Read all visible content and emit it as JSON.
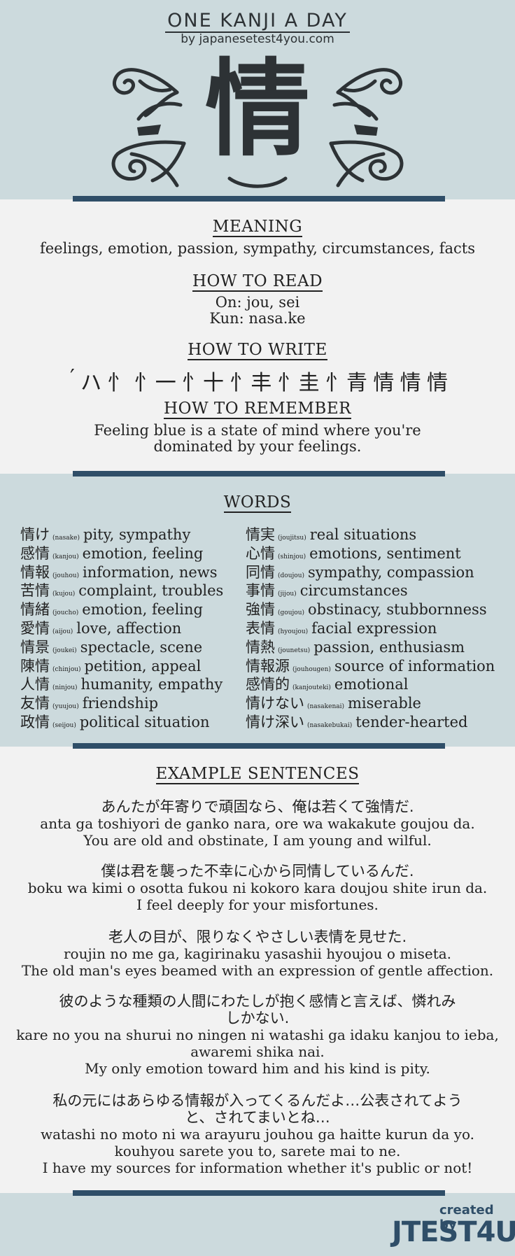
{
  "header": {
    "title": "ONE KANJI A DAY",
    "byline": "by japanesetest4you.com",
    "kanji": "情"
  },
  "meaning": {
    "heading": "MEANING",
    "text": "feelings, emotion, passion, sympathy, circumstances, facts"
  },
  "read": {
    "heading": "HOW TO READ",
    "on": "On: jou, sei",
    "kun": "Kun: nasa.ke"
  },
  "write": {
    "heading": "HOW TO WRITE",
    "strokes": [
      "′",
      "ハ",
      "忄",
      "忄一",
      "忄十",
      "忄丰",
      "忄圭",
      "忄青",
      "情",
      "情",
      "情"
    ]
  },
  "remember": {
    "heading": "HOW TO REMEMBER",
    "line1": "Feeling blue is a state of mind where you're",
    "line2": "dominated by your feelings."
  },
  "words": {
    "heading": "WORDS",
    "left": [
      {
        "kanji": "情け",
        "reading": "(nasake)",
        "meaning": "pity, sympathy"
      },
      {
        "kanji": "感情",
        "reading": "(kanjou)",
        "meaning": "emotion, feeling"
      },
      {
        "kanji": "情報",
        "reading": "(jouhou)",
        "meaning": "information, news"
      },
      {
        "kanji": "苦情",
        "reading": "(kujou)",
        "meaning": "complaint, troubles"
      },
      {
        "kanji": "情緒",
        "reading": "(joucho)",
        "meaning": "emotion, feeling"
      },
      {
        "kanji": "愛情",
        "reading": "(aijou)",
        "meaning": "love, affection"
      },
      {
        "kanji": "情景",
        "reading": "(joukei)",
        "meaning": "spectacle, scene"
      },
      {
        "kanji": "陳情",
        "reading": "(chinjou)",
        "meaning": "petition, appeal"
      },
      {
        "kanji": "人情",
        "reading": "(ninjou)",
        "meaning": "humanity, empathy"
      },
      {
        "kanji": "友情",
        "reading": "(yuujou)",
        "meaning": "friendship"
      },
      {
        "kanji": "政情",
        "reading": "(seijou)",
        "meaning": "political situation"
      }
    ],
    "right": [
      {
        "kanji": "情実",
        "reading": "(joujitsu)",
        "meaning": "real situations"
      },
      {
        "kanji": "心情",
        "reading": "(shinjou)",
        "meaning": "emotions, sentiment"
      },
      {
        "kanji": "同情",
        "reading": "(doujou)",
        "meaning": "sympathy, compassion"
      },
      {
        "kanji": "事情",
        "reading": "(jijou)",
        "meaning": "circumstances"
      },
      {
        "kanji": "強情",
        "reading": "(goujou)",
        "meaning": "obstinacy, stubbornness"
      },
      {
        "kanji": "表情",
        "reading": "(hyoujou)",
        "meaning": "facial expression"
      },
      {
        "kanji": "情熱",
        "reading": "(jounetsu)",
        "meaning": "passion, enthusiasm"
      },
      {
        "kanji": "情報源",
        "reading": "(jouhougen)",
        "meaning": "source of information"
      },
      {
        "kanji": "感情的",
        "reading": "(kanjouteki)",
        "meaning": "emotional"
      },
      {
        "kanji": "情けない",
        "reading": "(nasakenai)",
        "meaning": "miserable"
      },
      {
        "kanji": "情け深い",
        "reading": "(nasakebukai)",
        "meaning": "tender-hearted"
      }
    ]
  },
  "examples": {
    "heading": "EXAMPLE SENTENCES",
    "items": [
      {
        "jp": [
          "あんたが年寄りで頑固なら、俺は若くて強情だ."
        ],
        "romaji": [
          "anta ga toshiyori de ganko nara, ore wa wakakute goujou da."
        ],
        "en": "You are old and obstinate, I am young and wilful."
      },
      {
        "jp": [
          "僕は君を襲った不幸に心から同情しているんだ."
        ],
        "romaji": [
          "boku wa kimi o osotta fukou ni kokoro kara doujou shite irun da."
        ],
        "en": "I feel deeply for your misfortunes."
      },
      {
        "jp": [
          "老人の目が、限りなくやさしい表情を見せた."
        ],
        "romaji": [
          "roujin no me ga, kagirinaku yasashii hyoujou o miseta."
        ],
        "en": "The old man's eyes beamed with an expression of gentle affection."
      },
      {
        "jp": [
          "彼のような種類の人間にわたしが抱く感情と言えば、憐れみ",
          "しかない."
        ],
        "romaji": [
          "kare no you na shurui no ningen ni watashi ga idaku kanjou to ieba,",
          "awaremi shika nai."
        ],
        "en": "My only emotion toward him and his kind is pity."
      },
      {
        "jp": [
          "私の元にはあらゆる情報が入ってくるんだよ…公表されてよう",
          "と、されてまいとね…"
        ],
        "romaji": [
          "watashi no moto ni wa arayuru jouhou ga haitte kurun da yo.",
          "kouhyou sarete you to, sarete mai to ne."
        ],
        "en": "I have my sources for information whether it's public or not!"
      }
    ]
  },
  "footer": {
    "created_by": "created by",
    "brand": "JTEST4U"
  },
  "colors": {
    "band": "#ccdadd",
    "divider": "#2f4e68",
    "background": "#f2f2f2"
  }
}
